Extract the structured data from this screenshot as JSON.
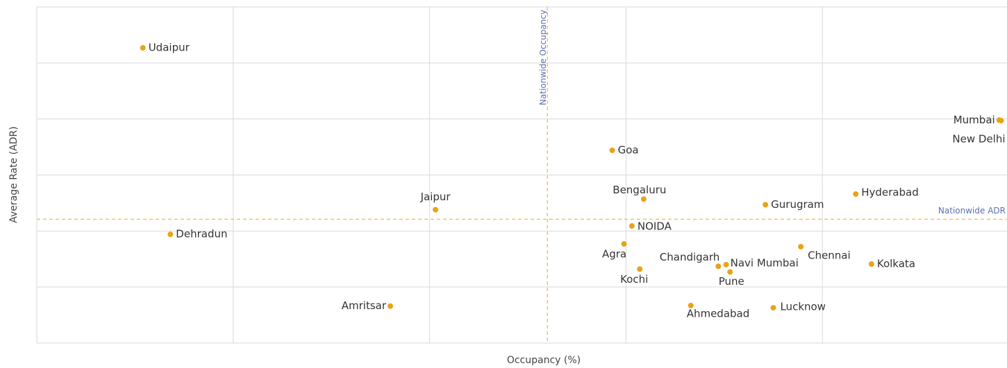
{
  "chart_data": {
    "type": "scatter",
    "x_label": "Occupancy (%)",
    "y_label": "Average Rate (ADR)",
    "xlim": [
      0,
      4.94
    ],
    "ylim": [
      0,
      6
    ],
    "xticks": [
      0,
      1,
      2,
      3,
      4
    ],
    "yticks": [
      0,
      1,
      2,
      3,
      4,
      5,
      6
    ],
    "grid": true,
    "color": "#e8a317",
    "points": [
      {
        "label": "Udaipur",
        "x": 0.54,
        "y": 5.27
      },
      {
        "label": "Mumbai",
        "x": 4.9,
        "y": 3.98
      },
      {
        "label": "New Delhi",
        "x": 4.91,
        "y": 3.97
      },
      {
        "label": "Goa",
        "x": 2.93,
        "y": 3.44
      },
      {
        "label": "Bengaluru",
        "x": 3.09,
        "y": 2.57
      },
      {
        "label": "Jaipur",
        "x": 2.03,
        "y": 2.38
      },
      {
        "label": "Gurugram",
        "x": 3.71,
        "y": 2.47
      },
      {
        "label": "Hyderabad",
        "x": 4.17,
        "y": 2.66
      },
      {
        "label": "Dehradun",
        "x": 0.68,
        "y": 1.94
      },
      {
        "label": "NOIDA",
        "x": 3.03,
        "y": 2.09
      },
      {
        "label": "Agra",
        "x": 2.99,
        "y": 1.77
      },
      {
        "label": "Chennai",
        "x": 3.89,
        "y": 1.72
      },
      {
        "label": "Chandigarh",
        "x": 3.47,
        "y": 1.37
      },
      {
        "label": "Navi Mumbai",
        "x": 3.51,
        "y": 1.4
      },
      {
        "label": "Pune",
        "x": 3.53,
        "y": 1.27
      },
      {
        "label": "Kochi",
        "x": 3.07,
        "y": 1.32
      },
      {
        "label": "Kolkata",
        "x": 4.25,
        "y": 1.41
      },
      {
        "label": "Amritsar",
        "x": 1.8,
        "y": 0.66
      },
      {
        "label": "Ahmedabad",
        "x": 3.33,
        "y": 0.67
      },
      {
        "label": "Lucknow",
        "x": 3.75,
        "y": 0.63
      }
    ],
    "reference_lines": {
      "x": {
        "value": 2.6,
        "label": "Nationwide Occupancy"
      },
      "y": {
        "value": 2.21,
        "label": "Nationwide ADR"
      }
    }
  }
}
